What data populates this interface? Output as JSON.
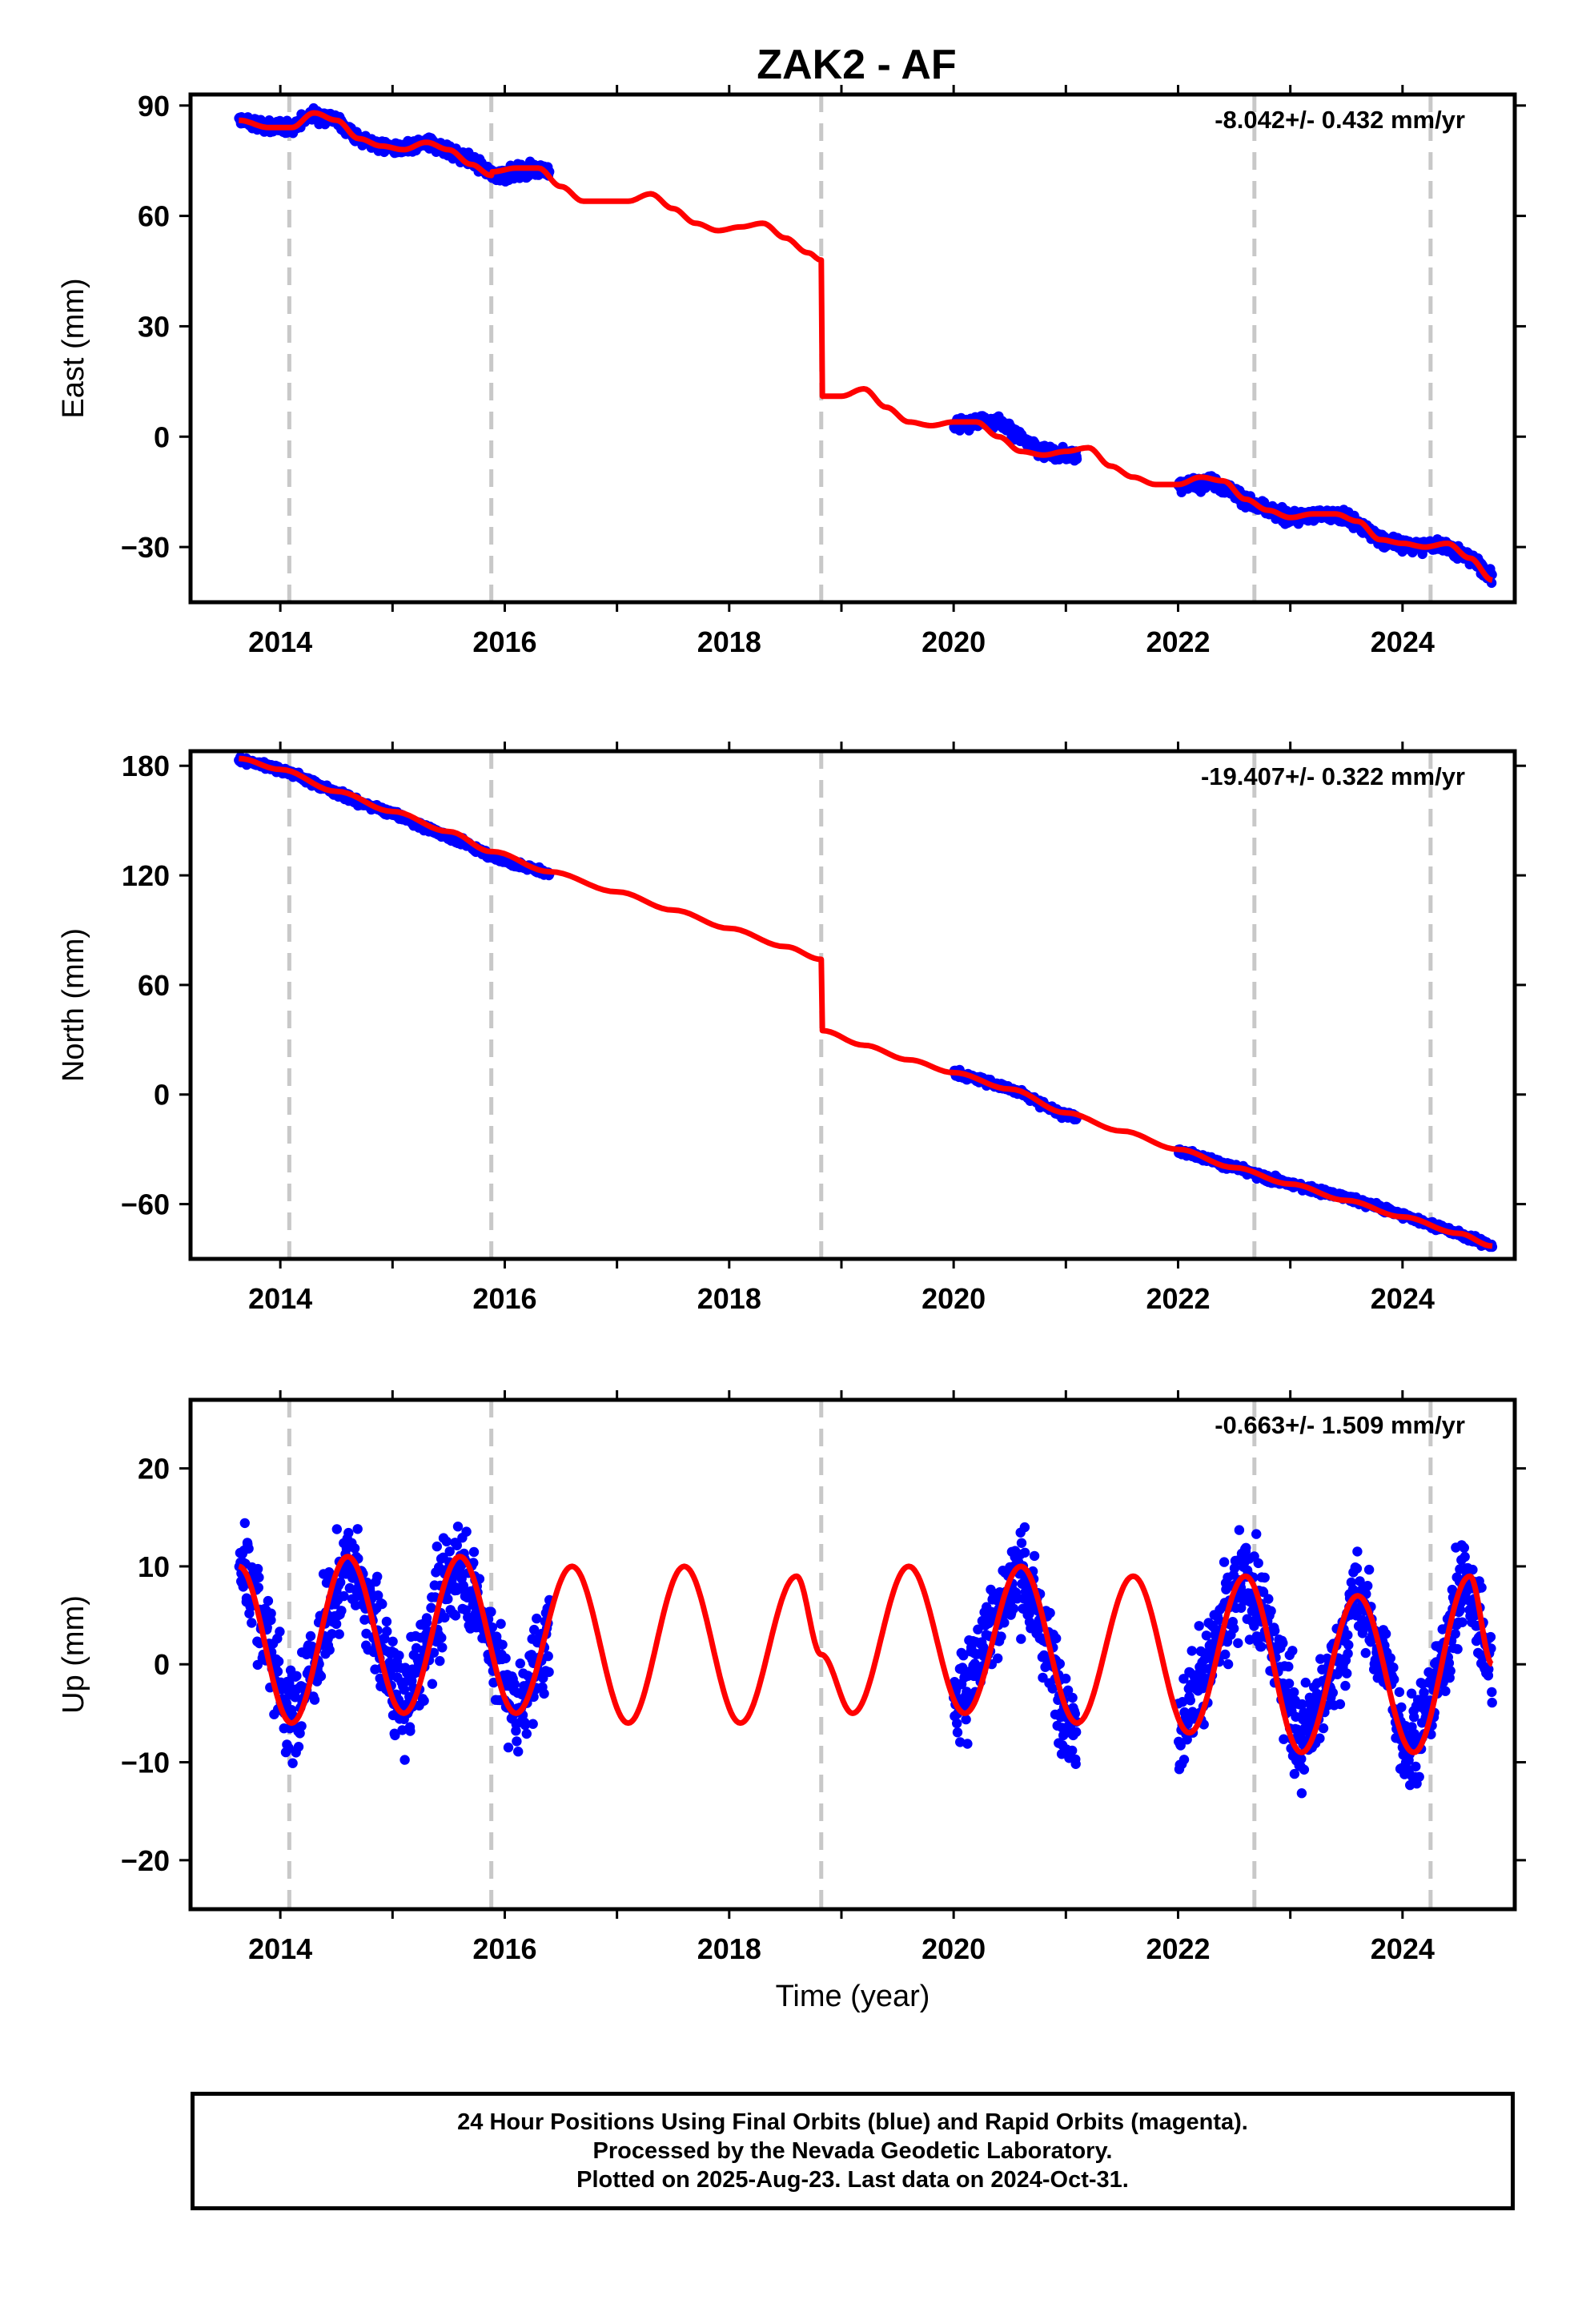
{
  "title": "ZAK2 - AF",
  "colors": {
    "final_orbit_points": "#0000ff",
    "model_fit": "#ff0000",
    "event_lines": "#c8c8c8"
  },
  "xlabel": "Time (year)",
  "xticks": [
    2014,
    2016,
    2018,
    2020,
    2022,
    2024
  ],
  "xlim": [
    2013.2,
    2025.0
  ],
  "event_lines": [
    2014.08,
    2015.88,
    2018.82,
    2022.68,
    2024.25
  ],
  "footer": {
    "line1": "24 Hour Positions Using Final Orbits (blue) and Rapid Orbits (magenta).",
    "line2": "Processed by the Nevada Geodetic Laboratory.",
    "line3": "Plotted on 2025-Aug-23. Last data on 2024-Oct-31."
  },
  "chart_data": [
    {
      "type": "scatter",
      "panel": "east",
      "ylabel": "East (mm)",
      "rate_label": "-8.042+/- 0.432 mm/yr",
      "ylim": [
        -45,
        93
      ],
      "yticks": [
        -30,
        0,
        30,
        60,
        90
      ],
      "data_segments": [
        [
          2013.63,
          2016.4
        ],
        [
          2020.0,
          2021.1
        ],
        [
          2022.0,
          2024.8
        ]
      ],
      "series": [
        {
          "name": "Final Orbits",
          "marker": "point",
          "x": [
            2013.65,
            2013.9,
            2014.1,
            2014.3,
            2014.5,
            2014.7,
            2014.9,
            2015.1,
            2015.3,
            2015.5,
            2015.7,
            2015.9,
            2016.1,
            2016.35,
            2020.0,
            2020.2,
            2020.4,
            2020.6,
            2020.8,
            2021.05,
            2022.0,
            2022.3,
            2022.5,
            2022.7,
            2023.0,
            2023.3,
            2023.5,
            2023.8,
            2024.1,
            2024.35,
            2024.6,
            2024.8
          ],
          "y": [
            86,
            84,
            84,
            88,
            86,
            81,
            79,
            78,
            80,
            78,
            75,
            71,
            72,
            73,
            3,
            4,
            4,
            0,
            -4,
            -5,
            -13,
            -12,
            -15,
            -19,
            -22,
            -21,
            -22,
            -28,
            -30,
            -29,
            -33,
            -38
          ]
        },
        {
          "name": "Model",
          "line": true,
          "x": [
            2013.63,
            2013.9,
            2014.1,
            2014.3,
            2014.5,
            2014.7,
            2014.9,
            2015.1,
            2015.3,
            2015.5,
            2015.7,
            2015.88,
            2015.89,
            2016.1,
            2016.3,
            2016.5,
            2016.7,
            2016.9,
            2017.1,
            2017.3,
            2017.5,
            2017.7,
            2017.9,
            2018.1,
            2018.3,
            2018.5,
            2018.7,
            2018.82,
            2018.83,
            2019.0,
            2019.2,
            2019.4,
            2019.6,
            2019.8,
            2020.0,
            2020.2,
            2020.4,
            2020.6,
            2020.8,
            2021.0,
            2021.2,
            2021.4,
            2021.6,
            2021.8,
            2022.0,
            2022.2,
            2022.4,
            2022.6,
            2022.8,
            2023.0,
            2023.2,
            2023.4,
            2023.6,
            2023.8,
            2024.0,
            2024.2,
            2024.4,
            2024.6,
            2024.8
          ],
          "y": [
            86,
            84,
            84,
            88,
            86,
            81,
            79,
            78,
            80,
            78,
            74,
            71,
            72,
            73,
            73,
            68,
            64,
            64,
            64,
            66,
            62,
            58,
            56,
            57,
            58,
            54,
            50,
            48,
            11,
            11,
            13,
            8,
            4,
            3,
            4,
            4,
            0,
            -4,
            -5,
            -4,
            -3,
            -8,
            -11,
            -13,
            -13,
            -11,
            -12,
            -17,
            -20,
            -22,
            -21,
            -21,
            -23,
            -28,
            -29,
            -30,
            -29,
            -33,
            -39
          ]
        }
      ]
    },
    {
      "type": "scatter",
      "panel": "north",
      "ylabel": "North (mm)",
      "rate_label": "-19.407+/- 0.322 mm/yr",
      "ylim": [
        -90,
        188
      ],
      "yticks": [
        -60,
        0,
        60,
        120,
        180
      ],
      "data_segments": [
        [
          2013.63,
          2016.4
        ],
        [
          2020.0,
          2021.1
        ],
        [
          2022.0,
          2024.8
        ]
      ],
      "series": [
        {
          "name": "Final Orbits",
          "marker": "point",
          "x": [
            2013.65,
            2013.9,
            2014.1,
            2014.4,
            2014.7,
            2015.0,
            2015.3,
            2015.6,
            2015.9,
            2016.1,
            2016.35,
            2020.0,
            2020.3,
            2020.6,
            2020.9,
            2021.05,
            2022.0,
            2022.4,
            2022.8,
            2023.2,
            2023.6,
            2024.0,
            2024.4,
            2024.8
          ],
          "y": [
            183,
            180,
            176,
            168,
            160,
            154,
            146,
            139,
            130,
            126,
            122,
            12,
            7,
            1,
            -9,
            -12,
            -30,
            -38,
            -46,
            -52,
            -58,
            -66,
            -74,
            -83
          ]
        },
        {
          "name": "Model",
          "line": true,
          "x": [
            2013.63,
            2014.0,
            2014.5,
            2015.0,
            2015.5,
            2015.88,
            2015.89,
            2016.4,
            2017.0,
            2017.5,
            2018.0,
            2018.5,
            2018.82,
            2018.83,
            2019.2,
            2019.6,
            2020.0,
            2020.5,
            2021.0,
            2021.5,
            2022.0,
            2022.5,
            2023.0,
            2023.5,
            2024.0,
            2024.5,
            2024.8
          ],
          "y": [
            184,
            178,
            166,
            155,
            144,
            133,
            133,
            122,
            111,
            101,
            91,
            81,
            74,
            35,
            27,
            19,
            12,
            3,
            -10,
            -20,
            -30,
            -40,
            -49,
            -58,
            -67,
            -76,
            -83
          ]
        }
      ]
    },
    {
      "type": "scatter",
      "panel": "up",
      "ylabel": "Up (mm)",
      "rate_label": "-0.663+/- 1.509 mm/yr",
      "ylim": [
        -25,
        27
      ],
      "yticks": [
        -20,
        -10,
        0,
        10,
        20
      ],
      "data_segments": [
        [
          2013.63,
          2016.4
        ],
        [
          2020.0,
          2021.1
        ],
        [
          2022.0,
          2024.8
        ]
      ],
      "scatter_spread_mm": 6,
      "series": [
        {
          "name": "Final Orbits",
          "marker": "point",
          "x": [
            2013.7,
            2013.9,
            2014.1,
            2014.35,
            2014.6,
            2014.85,
            2015.1,
            2015.35,
            2015.6,
            2015.85,
            2016.1,
            2016.35,
            2020.0,
            2020.3,
            2020.6,
            2020.85,
            2021.05,
            2022.0,
            2022.3,
            2022.6,
            2022.85,
            2023.1,
            2023.35,
            2023.6,
            2023.85,
            2024.05,
            2024.3,
            2024.55,
            2024.8
          ],
          "y": [
            10,
            2,
            -6,
            2,
            11,
            4,
            -5,
            4,
            11,
            3,
            -5,
            2,
            -5,
            3,
            10,
            1,
            -6,
            -7,
            1,
            9,
            2,
            -8,
            -2,
            7,
            0,
            -9,
            -2,
            9,
            0
          ]
        },
        {
          "name": "Model",
          "line": true,
          "amplitudes": [
            8,
            8,
            8,
            8,
            8,
            8,
            7.5,
            8,
            8,
            8,
            7.5,
            8,
            8,
            8
          ],
          "x": [
            2013.63,
            2014.1,
            2014.6,
            2015.1,
            2015.6,
            2016.1,
            2016.6,
            2017.1,
            2017.6,
            2018.1,
            2018.6,
            2018.82,
            2019.1,
            2019.6,
            2020.1,
            2020.6,
            2021.1,
            2021.6,
            2022.1,
            2022.6,
            2023.1,
            2023.6,
            2024.1,
            2024.6,
            2024.8
          ],
          "y": [
            10,
            -6,
            11,
            -5,
            11,
            -5,
            10,
            -6,
            10,
            -6,
            9,
            1,
            -5,
            10,
            -5,
            10,
            -6,
            9,
            -7,
            9,
            -9,
            7,
            -9,
            9,
            0
          ]
        }
      ]
    }
  ]
}
